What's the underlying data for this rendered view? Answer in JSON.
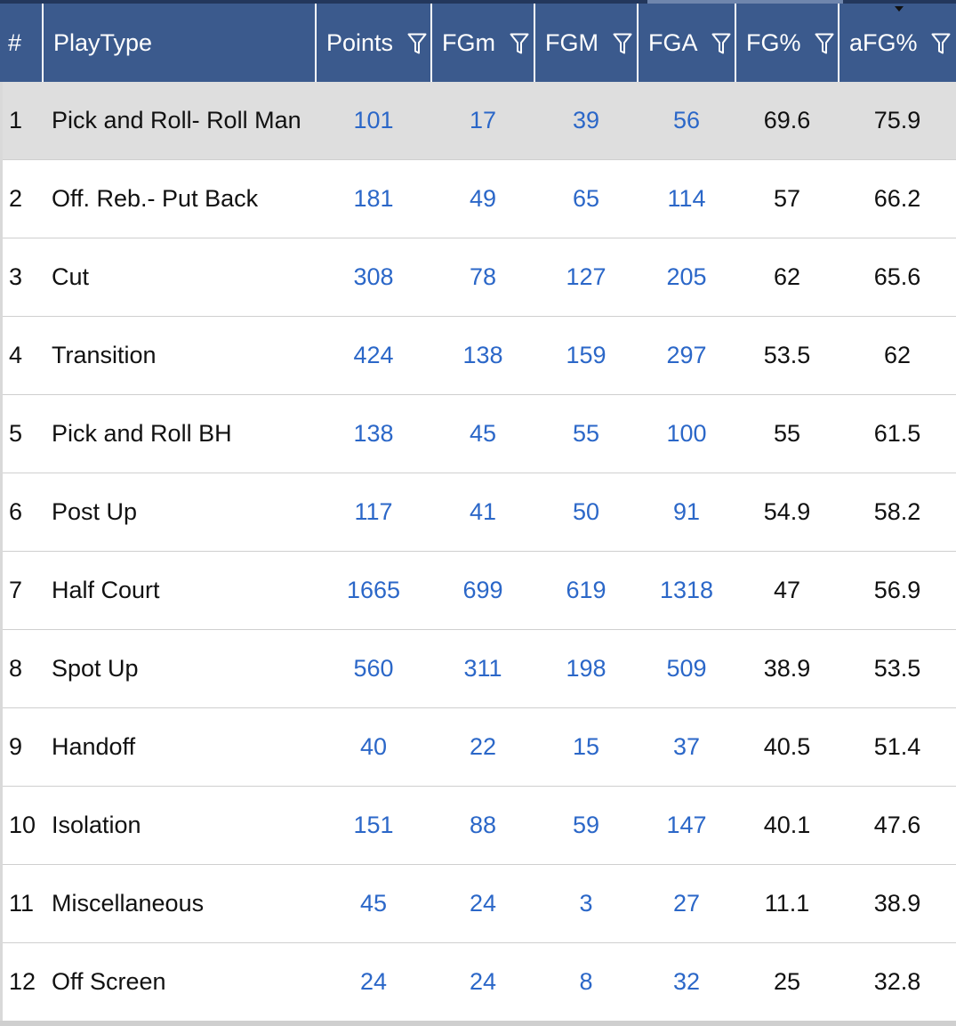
{
  "table": {
    "columns": [
      {
        "key": "idx",
        "label": "#",
        "filter": false
      },
      {
        "key": "playtype",
        "label": "PlayType",
        "filter": false
      },
      {
        "key": "points",
        "label": "Points",
        "filter": true
      },
      {
        "key": "fgm_missed",
        "label": "FGm",
        "filter": true
      },
      {
        "key": "fgm",
        "label": "FGM",
        "filter": true
      },
      {
        "key": "fga",
        "label": "FGA",
        "filter": true
      },
      {
        "key": "fg_pct",
        "label": "FG%",
        "filter": true
      },
      {
        "key": "afg_pct",
        "label": "aFG%",
        "filter": true,
        "sorted": "desc"
      }
    ],
    "rows": [
      {
        "idx": "1",
        "playtype": "Pick and Roll- Roll Man",
        "points": "101",
        "fgm_missed": "17",
        "fgm": "39",
        "fga": "56",
        "fg_pct": "69.6",
        "afg_pct": "75.9"
      },
      {
        "idx": "2",
        "playtype": "Off. Reb.- Put Back",
        "points": "181",
        "fgm_missed": "49",
        "fgm": "65",
        "fga": "114",
        "fg_pct": "57",
        "afg_pct": "66.2"
      },
      {
        "idx": "3",
        "playtype": "Cut",
        "points": "308",
        "fgm_missed": "78",
        "fgm": "127",
        "fga": "205",
        "fg_pct": "62",
        "afg_pct": "65.6"
      },
      {
        "idx": "4",
        "playtype": "Transition",
        "points": "424",
        "fgm_missed": "138",
        "fgm": "159",
        "fga": "297",
        "fg_pct": "53.5",
        "afg_pct": "62"
      },
      {
        "idx": "5",
        "playtype": "Pick and Roll BH",
        "points": "138",
        "fgm_missed": "45",
        "fgm": "55",
        "fga": "100",
        "fg_pct": "55",
        "afg_pct": "61.5"
      },
      {
        "idx": "6",
        "playtype": "Post Up",
        "points": "117",
        "fgm_missed": "41",
        "fgm": "50",
        "fga": "91",
        "fg_pct": "54.9",
        "afg_pct": "58.2"
      },
      {
        "idx": "7",
        "playtype": "Half Court",
        "points": "1665",
        "fgm_missed": "699",
        "fgm": "619",
        "fga": "1318",
        "fg_pct": "47",
        "afg_pct": "56.9"
      },
      {
        "idx": "8",
        "playtype": "Spot Up",
        "points": "560",
        "fgm_missed": "311",
        "fgm": "198",
        "fga": "509",
        "fg_pct": "38.9",
        "afg_pct": "53.5"
      },
      {
        "idx": "9",
        "playtype": "Handoff",
        "points": "40",
        "fgm_missed": "22",
        "fgm": "15",
        "fga": "37",
        "fg_pct": "40.5",
        "afg_pct": "51.4"
      },
      {
        "idx": "10",
        "playtype": "Isolation",
        "points": "151",
        "fgm_missed": "88",
        "fgm": "59",
        "fga": "147",
        "fg_pct": "40.1",
        "afg_pct": "47.6"
      },
      {
        "idx": "11",
        "playtype": "Miscellaneous",
        "points": "45",
        "fgm_missed": "24",
        "fgm": "3",
        "fga": "27",
        "fg_pct": "11.1",
        "afg_pct": "38.9"
      },
      {
        "idx": "12",
        "playtype": "Off Screen",
        "points": "24",
        "fgm_missed": "24",
        "fgm": "8",
        "fga": "32",
        "fg_pct": "25",
        "afg_pct": "32.8"
      }
    ]
  },
  "icons": {
    "filter": "filter-funnel-icon",
    "sort": "sort-descending-caret-icon"
  },
  "colors": {
    "header_bg": "#3b5a8d",
    "header_text": "#ffffff",
    "link": "#2b67c8",
    "highlight_row": "#dedede",
    "top_strip": "#23375c"
  }
}
